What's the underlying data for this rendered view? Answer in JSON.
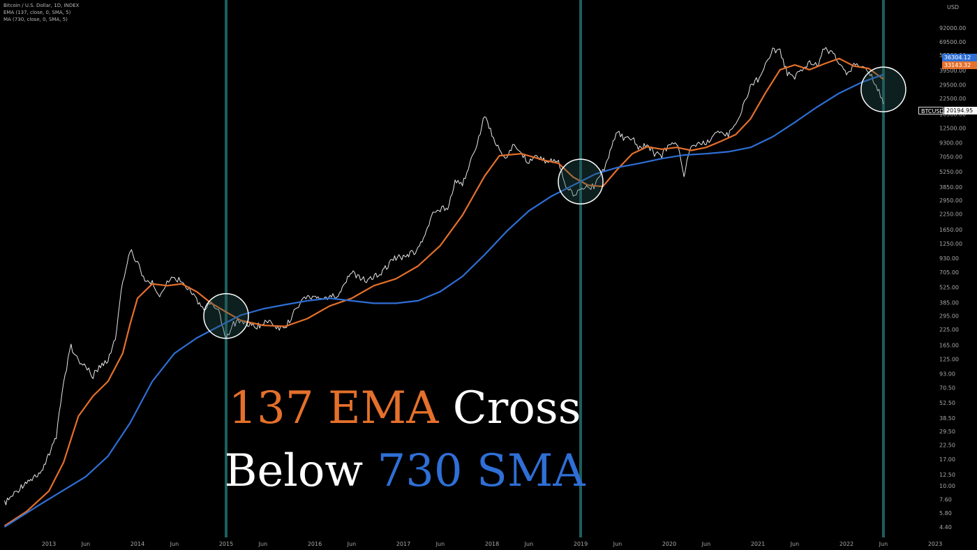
{
  "legend": {
    "symbol": "Bitcoin / U.S. Dollar, 1D, INDEX",
    "ema": "EMA (137, close, 0, SMA, 5)",
    "ma": "MA (730, close, 0, SMA, 5)"
  },
  "overlay": {
    "line1": [
      "137 EMA",
      "Cross"
    ],
    "line2": [
      "Below",
      "730 SMA"
    ]
  },
  "colors": {
    "background": "#000000",
    "price": "#e8e8e8",
    "ema": "#e5702b",
    "sma": "#2f6fd6",
    "vline": "#1c5f5e",
    "circle": "#ffffff",
    "overlay_white": "#ffffff",
    "axis_text": "#a8a8a8"
  },
  "price_tags": {
    "sma": "36304.12",
    "ema": "33143.32",
    "symbol": "BTCUSD",
    "last": "20194.95"
  },
  "chart_data": {
    "type": "line",
    "title": "Bitcoin / U.S. Dollar, 1D, INDEX",
    "y_unit": "USD",
    "y_scale": "log",
    "y_ticks": [
      "92000.00",
      "69500.00",
      "53500.00",
      "39500.00",
      "29500.00",
      "22500.00",
      "16500.00",
      "12500.00",
      "9300.00",
      "7050.00",
      "5250.00",
      "3850.00",
      "2950.00",
      "2250.00",
      "1650.00",
      "1250.00",
      "930.00",
      "705.00",
      "525.00",
      "385.00",
      "295.00",
      "225.00",
      "165.00",
      "125.00",
      "93.00",
      "70.50",
      "52.50",
      "38.50",
      "29.50",
      "22.50",
      "17.00",
      "12.50",
      "10.00",
      "7.60",
      "5.80",
      "4.40"
    ],
    "x_ticks": [
      "2013",
      "Jun",
      "2014",
      "Jun",
      "2015",
      "Jun",
      "2016",
      "Jun",
      "2017",
      "Jun",
      "2018",
      "Jun",
      "2019",
      "Jun",
      "2020",
      "Jun",
      "2021",
      "Jun",
      "2022",
      "Jun",
      "2023"
    ],
    "x_range": [
      "2012-07",
      "2023-01"
    ],
    "ylim": [
      4.4,
      92000
    ],
    "grid": false,
    "cross_markers": [
      "2015-01",
      "2019-01",
      "2022-06"
    ],
    "series": [
      {
        "name": "BTCUSD",
        "points": [
          [
            "2012-07",
            7
          ],
          [
            "2012-10",
            11
          ],
          [
            "2012-12",
            13
          ],
          [
            "2013-02",
            26
          ],
          [
            "2013-03",
            80
          ],
          [
            "2013-04",
            160
          ],
          [
            "2013-05",
            120
          ],
          [
            "2013-06",
            105
          ],
          [
            "2013-07",
            90
          ],
          [
            "2013-08",
            110
          ],
          [
            "2013-09",
            125
          ],
          [
            "2013-10",
            190
          ],
          [
            "2013-11",
            600
          ],
          [
            "2013-12",
            1100
          ],
          [
            "2014-01",
            850
          ],
          [
            "2014-02",
            600
          ],
          [
            "2014-03",
            580
          ],
          [
            "2014-04",
            450
          ],
          [
            "2014-05",
            600
          ],
          [
            "2014-06",
            620
          ],
          [
            "2014-07",
            600
          ],
          [
            "2014-08",
            500
          ],
          [
            "2014-09",
            400
          ],
          [
            "2014-10",
            340
          ],
          [
            "2014-11",
            380
          ],
          [
            "2014-12",
            320
          ],
          [
            "2015-01",
            190
          ],
          [
            "2015-02",
            250
          ],
          [
            "2015-03",
            270
          ],
          [
            "2015-05",
            235
          ],
          [
            "2015-07",
            280
          ],
          [
            "2015-08",
            230
          ],
          [
            "2015-09",
            235
          ],
          [
            "2015-10",
            300
          ],
          [
            "2015-11",
            390
          ],
          [
            "2015-12",
            430
          ],
          [
            "2016-02",
            430
          ],
          [
            "2016-04",
            440
          ],
          [
            "2016-06",
            700
          ],
          [
            "2016-07",
            650
          ],
          [
            "2016-08",
            580
          ],
          [
            "2016-10",
            700
          ],
          [
            "2016-12",
            950
          ],
          [
            "2017-01",
            960
          ],
          [
            "2017-03",
            1100
          ],
          [
            "2017-05",
            2200
          ],
          [
            "2017-06",
            2500
          ],
          [
            "2017-07",
            2600
          ],
          [
            "2017-08",
            4300
          ],
          [
            "2017-09",
            4000
          ],
          [
            "2017-10",
            6100
          ],
          [
            "2017-11",
            9000
          ],
          [
            "2017-12",
            16000
          ],
          [
            "2018-01",
            11000
          ],
          [
            "2018-02",
            8000
          ],
          [
            "2018-03",
            7000
          ],
          [
            "2018-04",
            9000
          ],
          [
            "2018-05",
            7500
          ],
          [
            "2018-06",
            6300
          ],
          [
            "2018-07",
            7200
          ],
          [
            "2018-08",
            6500
          ],
          [
            "2018-09",
            6600
          ],
          [
            "2018-10",
            6400
          ],
          [
            "2018-11",
            4000
          ],
          [
            "2018-12",
            3400
          ],
          [
            "2019-01",
            3500
          ],
          [
            "2019-02",
            3800
          ],
          [
            "2019-03",
            4000
          ],
          [
            "2019-04",
            5200
          ],
          [
            "2019-05",
            8000
          ],
          [
            "2019-06",
            11500
          ],
          [
            "2019-07",
            10000
          ],
          [
            "2019-08",
            10200
          ],
          [
            "2019-09",
            8300
          ],
          [
            "2019-10",
            9200
          ],
          [
            "2019-11",
            7500
          ],
          [
            "2019-12",
            7200
          ],
          [
            "2020-01",
            9300
          ],
          [
            "2020-02",
            9500
          ],
          [
            "2020-03",
            5000
          ],
          [
            "2020-04",
            8800
          ],
          [
            "2020-05",
            9500
          ],
          [
            "2020-06",
            9200
          ],
          [
            "2020-07",
            11000
          ],
          [
            "2020-08",
            11700
          ],
          [
            "2020-09",
            10800
          ],
          [
            "2020-10",
            13800
          ],
          [
            "2020-11",
            19000
          ],
          [
            "2020-12",
            29000
          ],
          [
            "2021-01",
            33000
          ],
          [
            "2021-02",
            45000
          ],
          [
            "2021-03",
            58000
          ],
          [
            "2021-04",
            57000
          ],
          [
            "2021-05",
            37000
          ],
          [
            "2021-06",
            35000
          ],
          [
            "2021-07",
            41000
          ],
          [
            "2021-08",
            47000
          ],
          [
            "2021-09",
            43000
          ],
          [
            "2021-10",
            61000
          ],
          [
            "2021-11",
            57000
          ],
          [
            "2021-12",
            46000
          ],
          [
            "2022-01",
            38000
          ],
          [
            "2022-02",
            43000
          ],
          [
            "2022-03",
            45000
          ],
          [
            "2022-04",
            38000
          ],
          [
            "2022-05",
            30000
          ],
          [
            "2022-06",
            20194.95
          ]
        ]
      },
      {
        "name": "EMA (137, close, 0, SMA, 5)",
        "points": [
          [
            "2012-07",
            4.5
          ],
          [
            "2012-10",
            6
          ],
          [
            "2013-01",
            9
          ],
          [
            "2013-03",
            16
          ],
          [
            "2013-05",
            40
          ],
          [
            "2013-07",
            60
          ],
          [
            "2013-09",
            80
          ],
          [
            "2013-11",
            140
          ],
          [
            "2013-12",
            250
          ],
          [
            "2014-01",
            420
          ],
          [
            "2014-03",
            560
          ],
          [
            "2014-05",
            540
          ],
          [
            "2014-07",
            560
          ],
          [
            "2014-09",
            480
          ],
          [
            "2014-11",
            380
          ],
          [
            "2015-01",
            320
          ],
          [
            "2015-03",
            270
          ],
          [
            "2015-06",
            245
          ],
          [
            "2015-09",
            240
          ],
          [
            "2015-12",
            280
          ],
          [
            "2016-03",
            360
          ],
          [
            "2016-06",
            420
          ],
          [
            "2016-09",
            540
          ],
          [
            "2016-12",
            620
          ],
          [
            "2017-03",
            800
          ],
          [
            "2017-06",
            1200
          ],
          [
            "2017-09",
            2200
          ],
          [
            "2017-12",
            4800
          ],
          [
            "2018-02",
            7200
          ],
          [
            "2018-05",
            7500
          ],
          [
            "2018-08",
            6600
          ],
          [
            "2018-10",
            6200
          ],
          [
            "2018-12",
            4700
          ],
          [
            "2019-02",
            4000
          ],
          [
            "2019-04",
            3900
          ],
          [
            "2019-06",
            5500
          ],
          [
            "2019-08",
            7500
          ],
          [
            "2019-10",
            8600
          ],
          [
            "2019-12",
            8200
          ],
          [
            "2020-02",
            8500
          ],
          [
            "2020-04",
            8000
          ],
          [
            "2020-06",
            8500
          ],
          [
            "2020-08",
            9600
          ],
          [
            "2020-10",
            11000
          ],
          [
            "2020-12",
            15000
          ],
          [
            "2021-02",
            25000
          ],
          [
            "2021-04",
            40000
          ],
          [
            "2021-06",
            44000
          ],
          [
            "2021-08",
            40000
          ],
          [
            "2021-10",
            45000
          ],
          [
            "2021-12",
            50000
          ],
          [
            "2022-02",
            43000
          ],
          [
            "2022-04",
            41000
          ],
          [
            "2022-06",
            33143.32
          ]
        ]
      },
      {
        "name": "MA (730, close, 0, SMA, 5)",
        "points": [
          [
            "2012-07",
            4.4
          ],
          [
            "2012-12",
            7
          ],
          [
            "2013-06",
            12
          ],
          [
            "2013-09",
            18
          ],
          [
            "2013-12",
            35
          ],
          [
            "2014-03",
            80
          ],
          [
            "2014-06",
            140
          ],
          [
            "2014-09",
            190
          ],
          [
            "2014-12",
            240
          ],
          [
            "2015-03",
            300
          ],
          [
            "2015-06",
            340
          ],
          [
            "2015-09",
            370
          ],
          [
            "2015-12",
            400
          ],
          [
            "2016-03",
            420
          ],
          [
            "2016-06",
            400
          ],
          [
            "2016-09",
            380
          ],
          [
            "2016-12",
            380
          ],
          [
            "2017-03",
            400
          ],
          [
            "2017-06",
            480
          ],
          [
            "2017-09",
            650
          ],
          [
            "2017-12",
            1000
          ],
          [
            "2018-03",
            1600
          ],
          [
            "2018-06",
            2400
          ],
          [
            "2018-09",
            3200
          ],
          [
            "2018-12",
            4000
          ],
          [
            "2019-03",
            5000
          ],
          [
            "2019-06",
            5700
          ],
          [
            "2019-09",
            6200
          ],
          [
            "2019-12",
            6800
          ],
          [
            "2020-03",
            7300
          ],
          [
            "2020-06",
            7500
          ],
          [
            "2020-09",
            7800
          ],
          [
            "2020-12",
            8500
          ],
          [
            "2021-03",
            10500
          ],
          [
            "2021-06",
            14000
          ],
          [
            "2021-09",
            19000
          ],
          [
            "2021-12",
            25000
          ],
          [
            "2022-03",
            31000
          ],
          [
            "2022-06",
            36304.12
          ]
        ]
      }
    ]
  }
}
